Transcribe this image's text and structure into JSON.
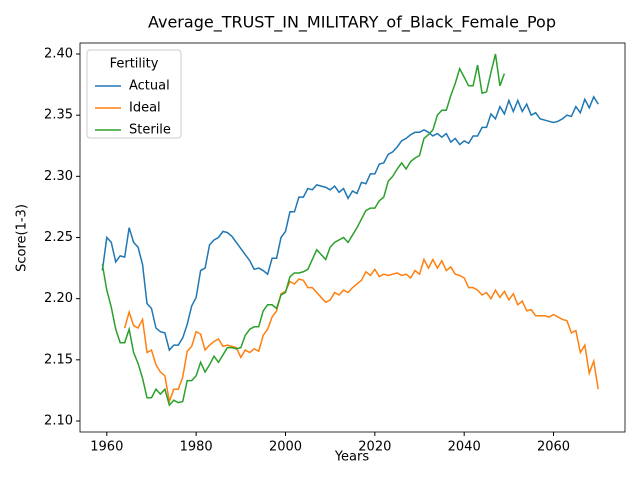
{
  "chart_data": {
    "type": "line",
    "title": "Average_TRUST_IN_MILITARY_of_Black_Female_Pop",
    "x_label": "Years",
    "y_label": "Score(1-3)",
    "legend_title": "Fertility",
    "legend_loc": "upper left",
    "x": [
      1959,
      1960,
      1961,
      1962,
      1963,
      1964,
      1965,
      1966,
      1967,
      1968,
      1969,
      1970,
      1971,
      1972,
      1973,
      1974,
      1975,
      1976,
      1977,
      1978,
      1979,
      1980,
      1981,
      1982,
      1983,
      1984,
      1985,
      1986,
      1987,
      1988,
      1989,
      1990,
      1991,
      1992,
      1993,
      1994,
      1995,
      1996,
      1997,
      1998,
      1999,
      2000,
      2001,
      2002,
      2003,
      2004,
      2005,
      2006,
      2007,
      2008,
      2009,
      2010,
      2011,
      2012,
      2013,
      2014,
      2015,
      2016,
      2017,
      2018,
      2019,
      2020,
      2021,
      2022,
      2023,
      2024,
      2025,
      2026,
      2027,
      2028,
      2029,
      2030,
      2031,
      2032,
      2033,
      2034,
      2035,
      2036,
      2037,
      2038,
      2039,
      2040,
      2041,
      2042,
      2043,
      2044,
      2045,
      2046,
      2047,
      2048,
      2049,
      2050,
      2051,
      2052,
      2053,
      2054,
      2055,
      2056,
      2057,
      2058,
      2059,
      2060,
      2061,
      2062,
      2063,
      2064,
      2065,
      2066,
      2067,
      2068,
      2069,
      2070
    ],
    "series": [
      {
        "name": "Actual",
        "color": "#1f77b4",
        "values": [
          2.223,
          2.25,
          2.246,
          2.23,
          2.235,
          2.234,
          2.258,
          2.246,
          2.242,
          2.228,
          2.196,
          2.192,
          2.176,
          2.173,
          2.172,
          2.158,
          2.162,
          2.162,
          2.168,
          2.179,
          2.194,
          2.201,
          2.223,
          2.225,
          2.244,
          2.248,
          2.25,
          2.255,
          2.254,
          2.251,
          2.246,
          2.241,
          2.236,
          2.231,
          2.224,
          2.225,
          2.223,
          2.22,
          2.233,
          2.233,
          2.25,
          2.255,
          2.271,
          2.271,
          2.283,
          2.283,
          2.29,
          2.289,
          2.293,
          2.292,
          2.291,
          2.289,
          2.292,
          2.287,
          2.29,
          2.282,
          2.288,
          2.286,
          2.295,
          2.294,
          2.302,
          2.302,
          2.31,
          2.311,
          2.318,
          2.32,
          2.324,
          2.329,
          2.331,
          2.334,
          2.336,
          2.336,
          2.338,
          2.336,
          2.333,
          2.335,
          2.332,
          2.335,
          2.328,
          2.331,
          2.326,
          2.329,
          2.327,
          2.333,
          2.333,
          2.34,
          2.34,
          2.351,
          2.347,
          2.357,
          2.351,
          2.362,
          2.353,
          2.362,
          2.353,
          2.359,
          2.35,
          2.352,
          2.347,
          2.346,
          2.345,
          2.344,
          2.345,
          2.347,
          2.35,
          2.349,
          2.357,
          2.352,
          2.363,
          2.356,
          2.365,
          2.359
        ]
      },
      {
        "name": "Ideal",
        "color": "#ff7f0e",
        "values": [
          null,
          null,
          null,
          null,
          null,
          2.176,
          2.189,
          2.178,
          2.176,
          2.183,
          2.156,
          2.158,
          2.146,
          2.14,
          2.137,
          2.116,
          2.126,
          2.126,
          2.136,
          2.157,
          2.161,
          2.173,
          2.171,
          2.158,
          2.162,
          2.165,
          2.167,
          2.161,
          2.162,
          2.161,
          2.16,
          2.152,
          2.158,
          2.156,
          2.159,
          2.157,
          2.17,
          2.175,
          2.185,
          2.19,
          2.204,
          2.206,
          2.214,
          2.212,
          2.216,
          2.215,
          2.209,
          2.209,
          2.205,
          2.201,
          2.197,
          2.199,
          2.205,
          2.203,
          2.207,
          2.205,
          2.209,
          2.212,
          2.215,
          2.222,
          2.219,
          2.224,
          2.218,
          2.22,
          2.219,
          2.22,
          2.221,
          2.219,
          2.22,
          2.217,
          2.223,
          2.22,
          2.232,
          2.225,
          2.232,
          2.225,
          2.231,
          2.223,
          2.226,
          2.22,
          2.219,
          2.217,
          2.209,
          2.209,
          2.207,
          2.203,
          2.205,
          2.2,
          2.207,
          2.201,
          2.206,
          2.199,
          2.204,
          2.195,
          2.198,
          2.19,
          2.191,
          2.186,
          2.186,
          2.186,
          2.185,
          2.187,
          2.185,
          2.183,
          2.182,
          2.172,
          2.174,
          2.156,
          2.162,
          2.139,
          2.149,
          2.126
        ]
      },
      {
        "name": "Sterile",
        "color": "#2ca02c",
        "values": [
          2.228,
          2.207,
          2.193,
          2.175,
          2.164,
          2.164,
          2.175,
          2.156,
          2.147,
          2.135,
          2.119,
          2.119,
          2.126,
          2.122,
          2.126,
          2.113,
          2.117,
          2.115,
          2.116,
          2.133,
          2.133,
          2.137,
          2.148,
          2.14,
          2.146,
          2.153,
          2.148,
          2.154,
          2.16,
          2.16,
          2.159,
          2.16,
          2.17,
          2.175,
          2.177,
          2.177,
          2.19,
          2.195,
          2.195,
          2.192,
          2.203,
          2.205,
          2.218,
          2.221,
          2.221,
          2.222,
          2.224,
          2.232,
          2.24,
          2.236,
          2.232,
          2.242,
          2.246,
          2.248,
          2.25,
          2.246,
          2.252,
          2.258,
          2.265,
          2.272,
          2.274,
          2.274,
          2.28,
          2.283,
          2.296,
          2.3,
          2.306,
          2.311,
          2.306,
          2.312,
          2.315,
          2.317,
          2.331,
          2.334,
          2.338,
          2.35,
          2.354,
          2.354,
          2.366,
          2.376,
          2.388,
          2.381,
          2.374,
          2.374,
          2.391,
          2.368,
          2.369,
          2.385,
          2.4,
          2.374,
          2.384,
          null,
          null,
          null,
          null,
          null,
          null,
          null,
          null,
          null,
          null,
          null,
          null,
          null,
          null,
          null,
          null,
          null,
          null,
          null,
          null,
          null
        ]
      }
    ],
    "xlim": [
      1954,
      2076
    ],
    "ylim": [
      2.091,
      2.409
    ],
    "xticks": [
      1960,
      1980,
      2000,
      2020,
      2040,
      2060
    ],
    "yticks": [
      {
        "value": 2.1,
        "label": "2.10"
      },
      2.15,
      {
        "value": 2.2,
        "label": "2.20"
      },
      2.25,
      {
        "value": 2.3,
        "label": "2.30"
      },
      2.35,
      {
        "value": 2.4,
        "label": "2.40"
      }
    ]
  }
}
